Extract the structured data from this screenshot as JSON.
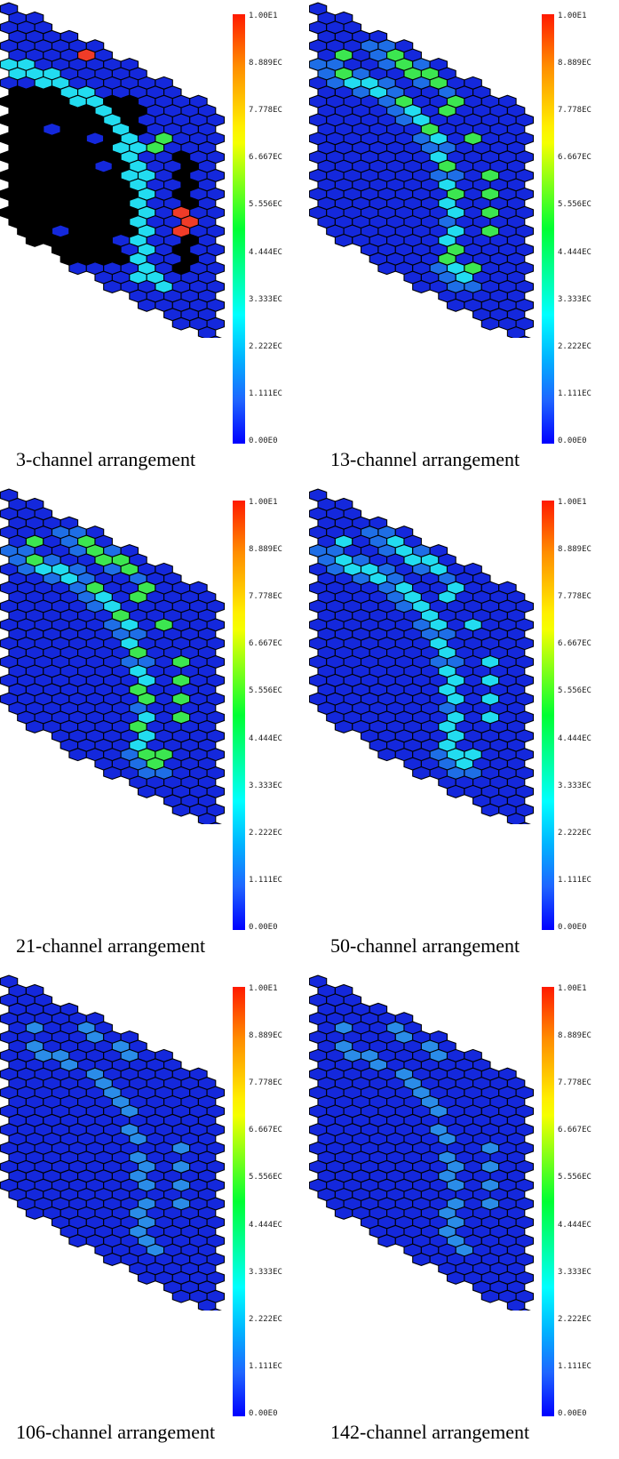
{
  "colorbar_ticks": [
    "1.00E1",
    "8.889EC",
    "7.778EC",
    "6.667EC",
    "5.556EC",
    "4.444EC",
    "3.333EC",
    "2.222EC",
    "1.111EC",
    "0.00E0"
  ],
  "colors": {
    "base": "#1428dc",
    "mid": "#1e6ee6",
    "cyan": "#22dcf0",
    "green": "#3ce650",
    "red": "#f03c28",
    "black": "#000000",
    "light": "#2a8ce8"
  },
  "panels": [
    {
      "caption": "3-channel arrangement",
      "arrangement": "3ch"
    },
    {
      "caption": "13-channel arrangement",
      "arrangement": "13ch"
    },
    {
      "caption": "21-channel arrangement",
      "arrangement": "21ch"
    },
    {
      "caption": "50-channel arrangement",
      "arrangement": "50ch"
    },
    {
      "caption": "106-channel arrangement",
      "arrangement": "106ch"
    },
    {
      "caption": "142-channel arrangement",
      "arrangement": "142ch"
    }
  ]
}
